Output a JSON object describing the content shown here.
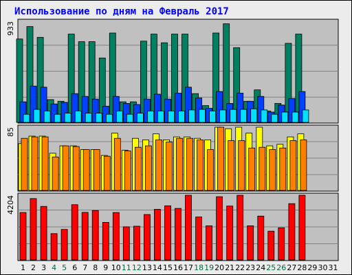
{
  "title": "Использование по дням на Февраль 2017",
  "colors": {
    "panel_bg": "#c0c0c0",
    "grid": "#808080",
    "weekday_label": "#000000",
    "weekend_label": "#006a3c",
    "s1": "#008060",
    "s2": "#0040ff",
    "s3": "#00e0ff",
    "s4": "#ffff00",
    "s5": "#ff8000",
    "s6": "#ff0000"
  },
  "chart_data": {
    "type": "bar",
    "days": [
      1,
      2,
      3,
      4,
      5,
      6,
      7,
      8,
      9,
      10,
      11,
      12,
      13,
      14,
      15,
      16,
      17,
      18,
      19,
      20,
      21,
      22,
      23,
      24,
      25,
      26,
      27,
      28,
      29,
      30,
      31
    ],
    "weekend_days": [
      4,
      5,
      11,
      12,
      18,
      19,
      25,
      26
    ],
    "grid": true,
    "panels": [
      {
        "ymax_label": "933",
        "ymax": 933,
        "series": [
          {
            "color_key": "s1",
            "values": [
              770,
              885,
              785,
              210,
              195,
              815,
              745,
              745,
              595,
              825,
              190,
              190,
              750,
              815,
              735,
              815,
              815,
              265,
              155,
              825,
              910,
              690,
              195,
              300,
              105,
              175,
              730,
              815,
              0,
              0,
              0
            ]
          },
          {
            "color_key": "s2",
            "values": [
              190,
              335,
              325,
              170,
              185,
              265,
              240,
              215,
              150,
              240,
              175,
              165,
              215,
              260,
              215,
              270,
              325,
              225,
              130,
              285,
              175,
              270,
              195,
              240,
              95,
              160,
              220,
              285,
              0,
              0,
              0
            ]
          },
          {
            "color_key": "s3",
            "values": [
              75,
              120,
              105,
              75,
              85,
              105,
              85,
              85,
              75,
              105,
              75,
              85,
              105,
              105,
              105,
              105,
              115,
              120,
              105,
              115,
              120,
              120,
              125,
              115,
              75,
              95,
              95,
              115,
              0,
              0,
              0
            ]
          }
        ]
      },
      {
        "ymax_label": "85",
        "ymax": 85,
        "series": [
          {
            "color_key": "s4",
            "values": [
              63,
              73,
              73,
              50,
              60,
              60,
              55,
              55,
              47,
              77,
              54,
              70,
              68,
              76,
              68,
              72,
              72,
              70,
              68,
              91,
              83,
              86,
              77,
              86,
              60,
              62,
              72,
              76,
              0,
              0,
              0
            ]
          },
          {
            "color_key": "s5",
            "values": [
              70,
              72,
              72,
              45,
              60,
              59,
              55,
              55,
              46,
              70,
              53,
              58,
              60,
              68,
              65,
              70,
              70,
              68,
              55,
              89,
              67,
              67,
              57,
              58,
              55,
              57,
              67,
              68,
              0,
              0,
              0
            ]
          }
        ]
      },
      {
        "ymax_label": "4204",
        "ymax": 4204,
        "series": [
          {
            "color_key": "s6",
            "values": [
              3080,
              3990,
              3480,
              1710,
              1980,
              3590,
              3090,
              3210,
              2440,
              3080,
              2150,
              2190,
              2950,
              3290,
              3520,
              3350,
              4300,
              2790,
              2220,
              4110,
              3500,
              4850,
              2220,
              2850,
              1870,
              2090,
              3660,
              4560,
              0,
              0,
              0
            ]
          }
        ]
      }
    ]
  }
}
